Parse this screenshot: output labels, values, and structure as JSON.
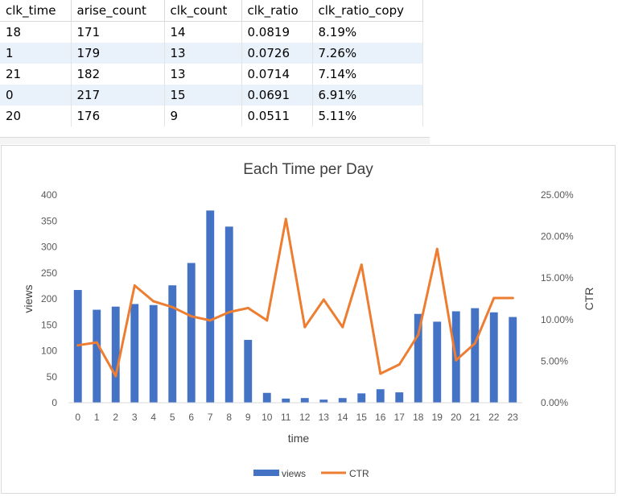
{
  "table": {
    "columns": [
      "clk_time",
      "arise_count",
      "clk_count",
      "clk_ratio",
      "clk_ratio_copy"
    ],
    "rows": [
      [
        "18",
        "171",
        "14",
        "0.0819",
        "8.19%"
      ],
      [
        "1",
        "179",
        "13",
        "0.0726",
        "7.26%"
      ],
      [
        "21",
        "182",
        "13",
        "0.0714",
        "7.14%"
      ],
      [
        "0",
        "217",
        "15",
        "0.0691",
        "6.91%"
      ],
      [
        "20",
        "176",
        "9",
        "0.0511",
        "5.11%"
      ]
    ]
  },
  "chart_data": {
    "type": "bar",
    "title": "Each Time per Day",
    "xlabel": "time",
    "ylabel": "views",
    "y2label": "CTR",
    "categories": [
      "0",
      "1",
      "2",
      "3",
      "4",
      "5",
      "6",
      "7",
      "8",
      "9",
      "10",
      "11",
      "12",
      "13",
      "14",
      "15",
      "16",
      "17",
      "18",
      "19",
      "20",
      "21",
      "22",
      "23"
    ],
    "ylim": [
      0,
      400
    ],
    "yticks": [
      "0",
      "50",
      "100",
      "150",
      "200",
      "250",
      "300",
      "350",
      "400"
    ],
    "y2lim": [
      0,
      0.25
    ],
    "y2ticks": [
      "0.00%",
      "5.00%",
      "10.00%",
      "15.00%",
      "20.00%",
      "25.00%"
    ],
    "grid": false,
    "legend_position": "bottom",
    "series": [
      {
        "name": "views",
        "type": "bar",
        "color": "#4472c4",
        "values": [
          217,
          179,
          185,
          190,
          188,
          226,
          269,
          370,
          339,
          121,
          19,
          8,
          9,
          6,
          9,
          18,
          26,
          20,
          171,
          156,
          176,
          182,
          174,
          165
        ]
      },
      {
        "name": "CTR",
        "type": "line",
        "color": "#ed7d31",
        "values": [
          0.0691,
          0.0726,
          0.032,
          0.141,
          0.122,
          0.115,
          0.104,
          0.099,
          0.109,
          0.114,
          0.099,
          0.221,
          0.091,
          0.124,
          0.091,
          0.166,
          0.035,
          0.046,
          0.0819,
          0.185,
          0.0511,
          0.0714,
          0.126,
          0.126
        ]
      }
    ]
  }
}
